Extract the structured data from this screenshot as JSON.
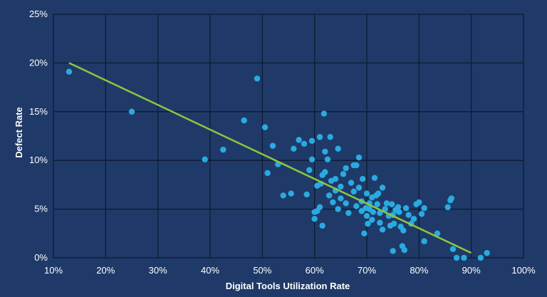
{
  "colors": {
    "background": "#1f3a68",
    "grid": "#0d1b33",
    "point": "#29abe2",
    "trendline": "#8dc63f",
    "text": "#ffffff"
  },
  "chart_data": {
    "type": "scatter",
    "title": "",
    "xlabel": "Digital Tools Utilization Rate",
    "ylabel": "Defect Rate",
    "xlim": [
      0.1,
      1.0
    ],
    "ylim": [
      0.0,
      0.25
    ],
    "x_ticks": [
      "10%",
      "20%",
      "30%",
      "40%",
      "50%",
      "60%",
      "70%",
      "80%",
      "90%",
      "100%"
    ],
    "y_ticks": [
      "0%",
      "5%",
      "10%",
      "15%",
      "20%",
      "25%"
    ],
    "grid": true,
    "legend": "none",
    "trendline": {
      "x": [
        0.13,
        0.9
      ],
      "y": [
        0.2,
        0.005
      ]
    },
    "points": [
      [
        0.13,
        0.191
      ],
      [
        0.25,
        0.15
      ],
      [
        0.39,
        0.101
      ],
      [
        0.425,
        0.111
      ],
      [
        0.465,
        0.141
      ],
      [
        0.49,
        0.184
      ],
      [
        0.505,
        0.134
      ],
      [
        0.51,
        0.087
      ],
      [
        0.52,
        0.115
      ],
      [
        0.53,
        0.096
      ],
      [
        0.54,
        0.064
      ],
      [
        0.555,
        0.066
      ],
      [
        0.56,
        0.112
      ],
      [
        0.57,
        0.121
      ],
      [
        0.58,
        0.117
      ],
      [
        0.585,
        0.065
      ],
      [
        0.59,
        0.09
      ],
      [
        0.595,
        0.12
      ],
      [
        0.595,
        0.101
      ],
      [
        0.6,
        0.047
      ],
      [
        0.6,
        0.04
      ],
      [
        0.605,
        0.074
      ],
      [
        0.605,
        0.048
      ],
      [
        0.61,
        0.124
      ],
      [
        0.61,
        0.052
      ],
      [
        0.612,
        0.076
      ],
      [
        0.615,
        0.085
      ],
      [
        0.615,
        0.033
      ],
      [
        0.618,
        0.148
      ],
      [
        0.62,
        0.109
      ],
      [
        0.62,
        0.088
      ],
      [
        0.625,
        0.101
      ],
      [
        0.628,
        0.064
      ],
      [
        0.63,
        0.124
      ],
      [
        0.632,
        0.079
      ],
      [
        0.635,
        0.057
      ],
      [
        0.64,
        0.081
      ],
      [
        0.64,
        0.069
      ],
      [
        0.645,
        0.112
      ],
      [
        0.645,
        0.05
      ],
      [
        0.65,
        0.073
      ],
      [
        0.65,
        0.061
      ],
      [
        0.655,
        0.086
      ],
      [
        0.66,
        0.092
      ],
      [
        0.66,
        0.056
      ],
      [
        0.665,
        0.046
      ],
      [
        0.67,
        0.077
      ],
      [
        0.675,
        0.095
      ],
      [
        0.675,
        0.068
      ],
      [
        0.68,
        0.053
      ],
      [
        0.68,
        0.095
      ],
      [
        0.685,
        0.072
      ],
      [
        0.685,
        0.103
      ],
      [
        0.69,
        0.058
      ],
      [
        0.69,
        0.048
      ],
      [
        0.692,
        0.081
      ],
      [
        0.695,
        0.025
      ],
      [
        0.698,
        0.051
      ],
      [
        0.7,
        0.066
      ],
      [
        0.7,
        0.043
      ],
      [
        0.702,
        0.035
      ],
      [
        0.705,
        0.05
      ],
      [
        0.705,
        0.056
      ],
      [
        0.71,
        0.062
      ],
      [
        0.71,
        0.039
      ],
      [
        0.712,
        0.047
      ],
      [
        0.715,
        0.082
      ],
      [
        0.718,
        0.064
      ],
      [
        0.72,
        0.055
      ],
      [
        0.722,
        0.066
      ],
      [
        0.725,
        0.046
      ],
      [
        0.725,
        0.036
      ],
      [
        0.73,
        0.029
      ],
      [
        0.73,
        0.072
      ],
      [
        0.735,
        0.05
      ],
      [
        0.738,
        0.056
      ],
      [
        0.742,
        0.043
      ],
      [
        0.745,
        0.033
      ],
      [
        0.748,
        0.055
      ],
      [
        0.75,
        0.044
      ],
      [
        0.75,
        0.007
      ],
      [
        0.752,
        0.035
      ],
      [
        0.755,
        0.049
      ],
      [
        0.76,
        0.052
      ],
      [
        0.762,
        0.047
      ],
      [
        0.765,
        0.032
      ],
      [
        0.768,
        0.012
      ],
      [
        0.77,
        0.028
      ],
      [
        0.772,
        0.008
      ],
      [
        0.775,
        0.051
      ],
      [
        0.78,
        0.044
      ],
      [
        0.785,
        0.035
      ],
      [
        0.79,
        0.04
      ],
      [
        0.795,
        0.055
      ],
      [
        0.8,
        0.057
      ],
      [
        0.805,
        0.045
      ],
      [
        0.81,
        0.051
      ],
      [
        0.81,
        0.017
      ],
      [
        0.835,
        0.025
      ],
      [
        0.855,
        0.052
      ],
      [
        0.86,
        0.059
      ],
      [
        0.862,
        0.061
      ],
      [
        0.865,
        0.009
      ],
      [
        0.872,
        0.0
      ],
      [
        0.886,
        0.0
      ],
      [
        0.918,
        0.0
      ],
      [
        0.93,
        0.005
      ]
    ]
  }
}
